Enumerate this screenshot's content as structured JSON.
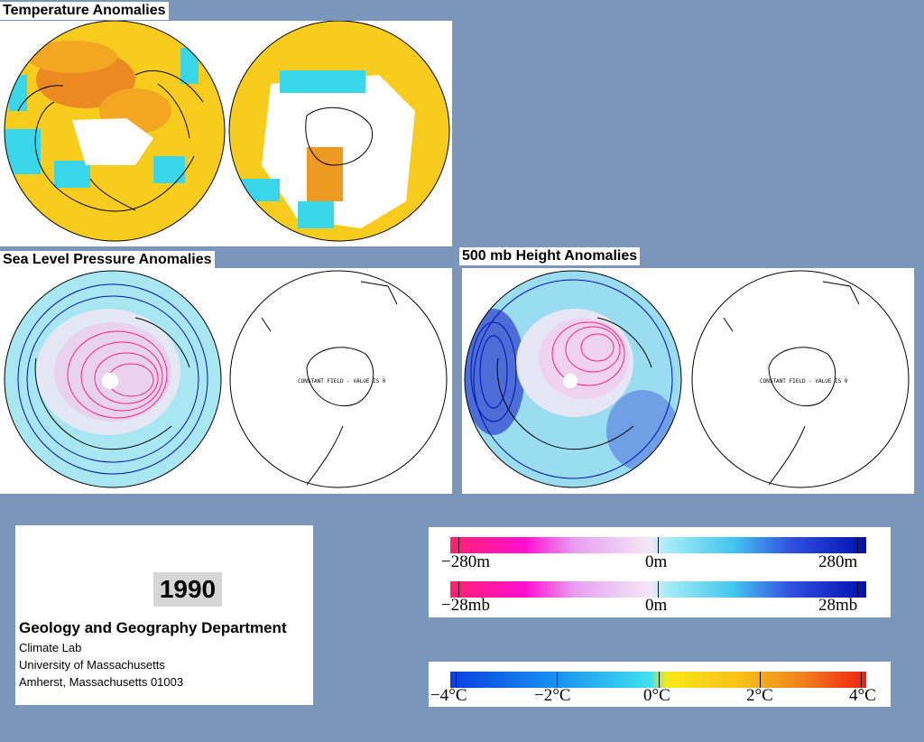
{
  "sections": {
    "temperature": "Temperature Anomalies",
    "slp": "Sea Level Pressure Anomalies",
    "height500": "500 mb Height Anomalies"
  },
  "map_notes": {
    "slp_south": "CONSTANT FIELD - VALUE IS 0",
    "height_south": "CONSTANT FIELD - VALUE IS 0"
  },
  "info": {
    "year": "1990",
    "department": "Geology and Geography Department",
    "lab": "Climate Lab",
    "university": "University of Massachusetts",
    "address": "Amherst, Massachusetts 01003"
  },
  "legends": {
    "height": {
      "min": "−280m",
      "mid": "0m",
      "max": "280m"
    },
    "pressure": {
      "min": "−28mb",
      "mid": "0m",
      "max": "28mb"
    },
    "temperature": {
      "labels": [
        "−4°C",
        "−2°C",
        "0°C",
        "2°C",
        "4°C"
      ]
    }
  },
  "colors": {
    "background": "#7b96bb",
    "negative_anomaly_pressure": "#ff2080",
    "positive_anomaly_pressure": "#0010b0",
    "warm": "#f0a020",
    "cool": "#20d0e8"
  }
}
